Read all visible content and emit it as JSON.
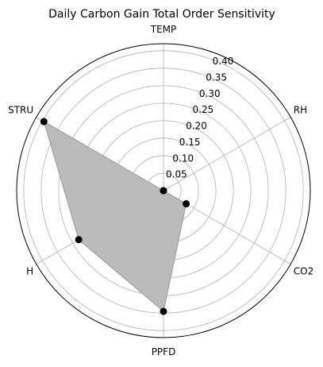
{
  "chart_data": {
    "type": "radar",
    "title": "Daily Carbon Gain Total Order Sensitivity",
    "categories": [
      "TEMP",
      "RH",
      "CO2",
      "PPFD",
      "H",
      "STRU"
    ],
    "values": [
      0.0,
      0.0,
      0.075,
      0.345,
      0.28,
      0.395
    ],
    "rlim": [
      0,
      0.42
    ],
    "rticks": [
      0.05,
      0.1,
      0.15,
      0.2,
      0.25,
      0.3,
      0.35,
      0.4
    ],
    "rtick_labels": [
      "0.05",
      "0.10",
      "0.15",
      "0.20",
      "0.25",
      "0.30",
      "0.35",
      "0.40"
    ],
    "grid": true,
    "fill_color": "#bbbbbb",
    "line_color": "#999999",
    "marker_color": "#000000"
  }
}
